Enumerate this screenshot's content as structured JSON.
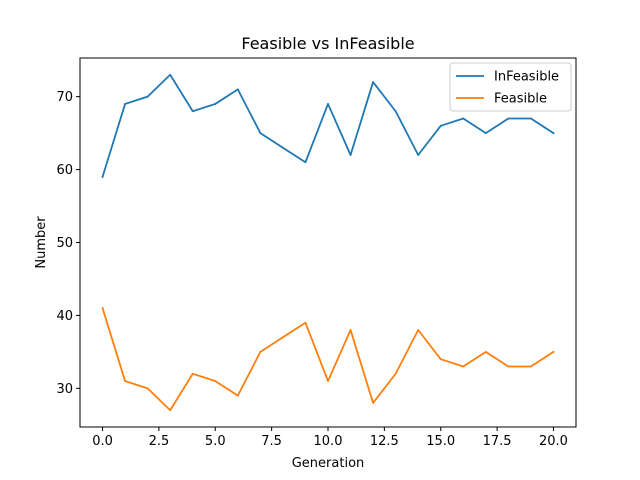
{
  "chart_data": {
    "type": "line",
    "title": "Feasible vs InFeasible",
    "xlabel": "Generation",
    "ylabel": "Number",
    "xlim": [
      -1,
      21
    ],
    "ylim": [
      24.7,
      75.3
    ],
    "xticks": [
      "0.0",
      "2.5",
      "5.0",
      "7.5",
      "10.0",
      "12.5",
      "15.0",
      "17.5",
      "20.0"
    ],
    "xtick_values": [
      0,
      2.5,
      5,
      7.5,
      10,
      12.5,
      15,
      17.5,
      20
    ],
    "yticks": [
      "30",
      "40",
      "50",
      "60",
      "70"
    ],
    "ytick_values": [
      30,
      40,
      50,
      60,
      70
    ],
    "grid": false,
    "legend_position": "top-right",
    "x": [
      0,
      1,
      2,
      3,
      4,
      5,
      6,
      7,
      8,
      9,
      10,
      11,
      12,
      13,
      14,
      15,
      16,
      17,
      18,
      19,
      20
    ],
    "series": [
      {
        "name": "InFeasible",
        "color": "#1f77b4",
        "values": [
          59,
          69,
          70,
          73,
          68,
          69,
          71,
          65,
          63,
          61,
          69,
          62,
          72,
          68,
          62,
          66,
          67,
          65,
          67,
          67,
          65
        ]
      },
      {
        "name": "Feasible",
        "color": "#ff7f0e",
        "values": [
          41,
          31,
          30,
          27,
          32,
          31,
          29,
          35,
          37,
          39,
          31,
          38,
          28,
          32,
          38,
          34,
          33,
          35,
          33,
          33,
          35
        ]
      }
    ]
  }
}
